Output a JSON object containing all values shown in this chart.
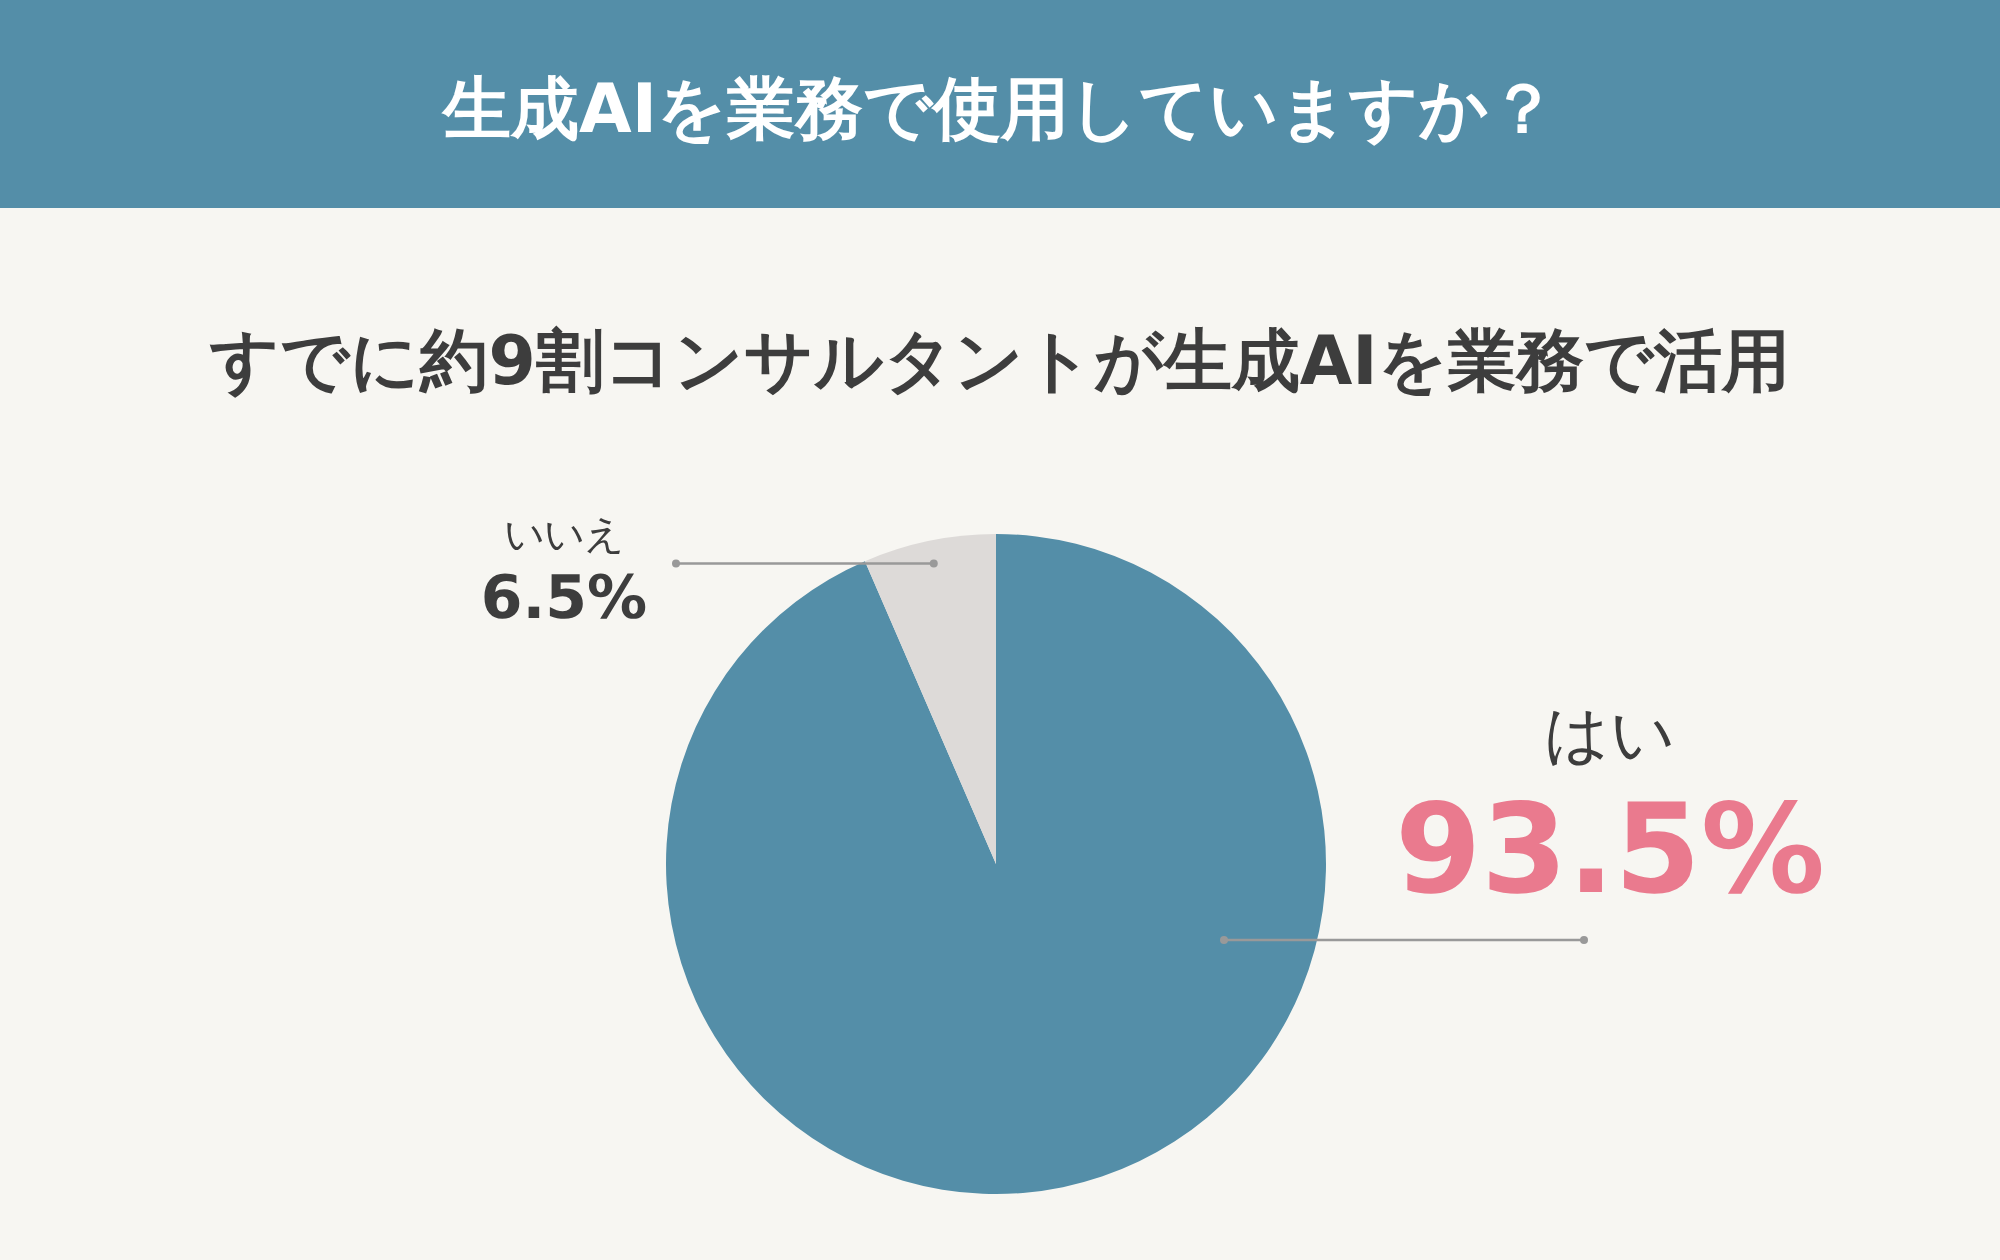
{
  "chart_data": {
    "type": "pie",
    "title": "生成AIを業務で使用していますか？",
    "subtitle": "すでに約9割コンサルタントが生成AIを業務で活用",
    "categories": [
      "はい",
      "いいえ"
    ],
    "values": [
      93.5,
      6.5
    ],
    "colors": [
      "#548ea8",
      "#dddad8"
    ],
    "value_labels": [
      "93.5%",
      "6.5%"
    ]
  }
}
